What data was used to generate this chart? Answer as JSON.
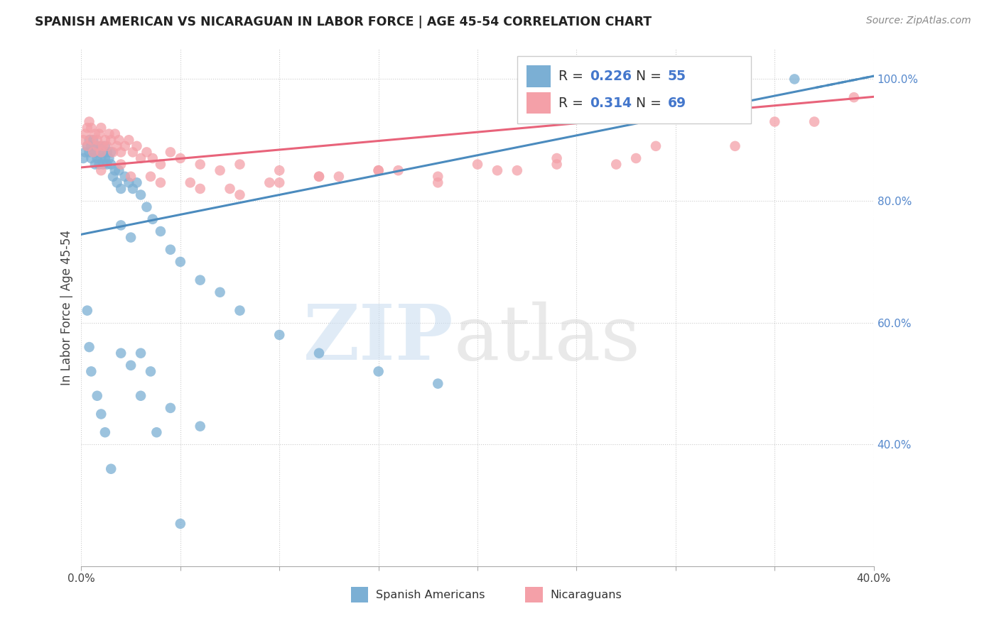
{
  "title": "SPANISH AMERICAN VS NICARAGUAN IN LABOR FORCE | AGE 45-54 CORRELATION CHART",
  "source": "Source: ZipAtlas.com",
  "ylabel": "In Labor Force | Age 45-54",
  "xlim": [
    0.0,
    0.4
  ],
  "ylim": [
    0.2,
    1.05
  ],
  "xtick_vals": [
    0.0,
    0.05,
    0.1,
    0.15,
    0.2,
    0.25,
    0.3,
    0.35,
    0.4
  ],
  "xtick_labels": [
    "0.0%",
    "",
    "",
    "",
    "",
    "",
    "",
    "",
    "40.0%"
  ],
  "ytick_vals_right": [
    0.4,
    0.6,
    0.8,
    1.0
  ],
  "ytick_labels_right": [
    "40.0%",
    "60.0%",
    "80.0%",
    "100.0%"
  ],
  "legend_blue_r": "0.226",
  "legend_blue_n": "55",
  "legend_pink_r": "0.314",
  "legend_pink_n": "69",
  "blue_color": "#7BAFD4",
  "pink_color": "#F4A0A8",
  "blue_line_color": "#4B8BBE",
  "pink_line_color": "#E8637A",
  "blue_scatter_x": [
    0.001,
    0.002,
    0.003,
    0.004,
    0.004,
    0.005,
    0.005,
    0.006,
    0.006,
    0.007,
    0.007,
    0.008,
    0.008,
    0.009,
    0.009,
    0.01,
    0.01,
    0.011,
    0.011,
    0.012,
    0.012,
    0.013,
    0.013,
    0.014,
    0.015,
    0.015,
    0.016,
    0.017,
    0.018,
    0.019,
    0.02,
    0.022,
    0.024,
    0.026,
    0.028,
    0.03,
    0.033,
    0.036,
    0.04,
    0.045,
    0.05,
    0.06,
    0.07,
    0.08,
    0.1,
    0.12,
    0.15,
    0.18,
    0.02,
    0.025,
    0.03,
    0.035,
    0.045,
    0.06,
    0.36
  ],
  "blue_scatter_y": [
    0.87,
    0.88,
    0.89,
    0.9,
    0.88,
    0.89,
    0.87,
    0.88,
    0.9,
    0.86,
    0.88,
    0.87,
    0.89,
    0.88,
    0.86,
    0.89,
    0.87,
    0.88,
    0.86,
    0.89,
    0.87,
    0.88,
    0.86,
    0.87,
    0.88,
    0.86,
    0.84,
    0.85,
    0.83,
    0.85,
    0.82,
    0.84,
    0.83,
    0.82,
    0.83,
    0.81,
    0.79,
    0.77,
    0.75,
    0.72,
    0.7,
    0.67,
    0.65,
    0.62,
    0.58,
    0.55,
    0.52,
    0.5,
    0.76,
    0.74,
    0.55,
    0.52,
    0.46,
    0.43,
    1.0
  ],
  "blue_outlier_x": [
    0.003,
    0.004,
    0.005,
    0.008,
    0.01,
    0.012,
    0.015,
    0.02,
    0.025,
    0.03,
    0.038,
    0.05
  ],
  "blue_outlier_y": [
    0.62,
    0.56,
    0.52,
    0.48,
    0.45,
    0.42,
    0.36,
    0.55,
    0.53,
    0.48,
    0.42,
    0.27
  ],
  "pink_scatter_x": [
    0.001,
    0.002,
    0.003,
    0.003,
    0.004,
    0.005,
    0.005,
    0.006,
    0.007,
    0.008,
    0.008,
    0.009,
    0.01,
    0.01,
    0.011,
    0.012,
    0.013,
    0.014,
    0.015,
    0.016,
    0.017,
    0.018,
    0.019,
    0.02,
    0.022,
    0.024,
    0.026,
    0.028,
    0.03,
    0.033,
    0.036,
    0.04,
    0.045,
    0.05,
    0.06,
    0.07,
    0.08,
    0.1,
    0.12,
    0.15,
    0.18,
    0.21,
    0.24,
    0.28,
    0.02,
    0.035,
    0.055,
    0.075,
    0.095,
    0.12,
    0.15,
    0.18,
    0.22,
    0.27,
    0.33,
    0.37,
    0.01,
    0.025,
    0.04,
    0.06,
    0.08,
    0.1,
    0.13,
    0.16,
    0.2,
    0.24,
    0.29,
    0.35,
    0.39
  ],
  "pink_scatter_y": [
    0.9,
    0.91,
    0.92,
    0.89,
    0.93,
    0.9,
    0.92,
    0.88,
    0.91,
    0.89,
    0.9,
    0.91,
    0.92,
    0.88,
    0.89,
    0.9,
    0.89,
    0.91,
    0.9,
    0.88,
    0.91,
    0.89,
    0.9,
    0.88,
    0.89,
    0.9,
    0.88,
    0.89,
    0.87,
    0.88,
    0.87,
    0.86,
    0.88,
    0.87,
    0.86,
    0.85,
    0.86,
    0.85,
    0.84,
    0.85,
    0.84,
    0.85,
    0.86,
    0.87,
    0.86,
    0.84,
    0.83,
    0.82,
    0.83,
    0.84,
    0.85,
    0.83,
    0.85,
    0.86,
    0.89,
    0.93,
    0.85,
    0.84,
    0.83,
    0.82,
    0.81,
    0.83,
    0.84,
    0.85,
    0.86,
    0.87,
    0.89,
    0.93,
    0.97
  ]
}
